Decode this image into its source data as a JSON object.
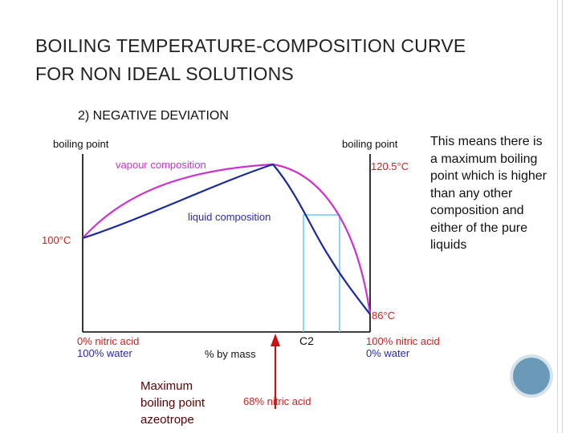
{
  "slide": {
    "title_line1": "BOILING TEMPERATURE-COMPOSITION CURVE",
    "title_line2": "FOR NON IDEAL SOLUTIONS",
    "subtitle": "2) NEGATIVE DEVIATION",
    "description": "This means there is a maximum boiling point which is higher than any other composition and either of the pure liquids",
    "annotation_lines": [
      "Maximum",
      "boiling point",
      "azeotrope"
    ]
  },
  "diagram": {
    "left_axis_label": "boiling point",
    "right_axis_label": "boiling point",
    "vapour_label": "vapour composition",
    "liquid_label": "liquid composition",
    "left_temp": "100°C",
    "max_temp": "120.5°C",
    "right_temp": "86°C",
    "left_comp_acid": "0% nitric acid",
    "left_comp_water": "100% water",
    "right_comp_acid": "100% nitric acid",
    "right_comp_water": "0% water",
    "x_axis_label": "% by mass",
    "c2_label": "C2",
    "azeotrope_comp": "68% nitric acid",
    "colors": {
      "vapour": "#cc33cc",
      "liquid": "#1a2a99",
      "tie_line": "#66ccee",
      "label_red": "#cc2222",
      "label_blue": "#2a2aaa",
      "arrow": "#cc1111"
    }
  }
}
